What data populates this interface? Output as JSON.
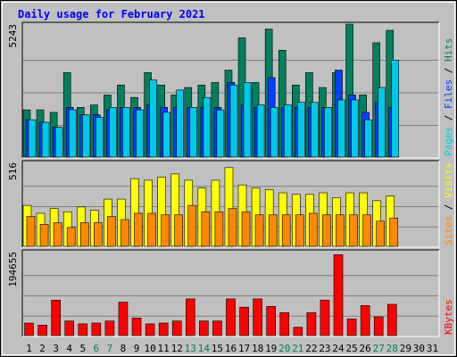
{
  "chart_data": {
    "type": "bar",
    "title": "Daily usage for February 2021",
    "x_labels": [
      "1",
      "2",
      "3",
      "4",
      "5",
      "6",
      "7",
      "8",
      "9",
      "10",
      "11",
      "12",
      "13",
      "14",
      "15",
      "16",
      "17",
      "18",
      "19",
      "20",
      "21",
      "22",
      "23",
      "24",
      "25",
      "26",
      "27",
      "28",
      "29",
      "30",
      "31"
    ],
    "weekend_days": [
      6,
      7,
      13,
      14,
      20,
      21,
      27,
      28
    ],
    "panels": [
      {
        "name": "hits-files-pages",
        "ymax_label": "5243",
        "ymax": 5243,
        "legend": [
          {
            "text": "Pages",
            "color": "#00c8e8"
          },
          {
            "text": " / ",
            "color": "#000000"
          },
          {
            "text": "Files",
            "color": "#0040ff"
          },
          {
            "text": " / ",
            "color": "#000000"
          },
          {
            "text": "Hits",
            "color": "#00805c"
          }
        ],
        "series": [
          {
            "name": "Hits",
            "color": "#00805c",
            "values": [
              1900,
              1900,
              1800,
              3400,
              2000,
              2100,
              2500,
              2900,
              2400,
              3400,
              2900,
              2500,
              2800,
              2900,
              3000,
              3500,
              4800,
              3000,
              5150,
              4300,
              2900,
              3400,
              2800,
              3400,
              5350,
              2500,
              4600,
              5100,
              0,
              0,
              0
            ]
          },
          {
            "name": "Files",
            "color": "#0040ff",
            "values": [
              1500,
              1400,
              1200,
              2000,
              1700,
              1700,
              1900,
              2000,
              2000,
              2100,
              2000,
              2000,
              2000,
              2000,
              2000,
              3000,
              2100,
              2000,
              3200,
              2000,
              2000,
              2000,
              2000,
              3500,
              2500,
              1800,
              2200,
              2000,
              0,
              0,
              0
            ]
          },
          {
            "name": "Pages",
            "color": "#00c8e8",
            "values": [
              1500,
              1400,
              1200,
              1900,
              1700,
              1600,
              2000,
              2000,
              1900,
              3100,
              1800,
              2700,
              2000,
              2400,
              1900,
              2900,
              3000,
              2100,
              2000,
              2100,
              2200,
              2200,
              2000,
              2300,
              2300,
              1500,
              2800,
              3900,
              0,
              0,
              0
            ]
          }
        ]
      },
      {
        "name": "visits-sites",
        "ymax_label": "516",
        "ymax": 516,
        "legend": [
          {
            "text": "Sites",
            "color": "#ff8800"
          },
          {
            "text": " / ",
            "color": "#000000"
          },
          {
            "text": "Visits",
            "color": "#ffff00"
          }
        ],
        "series": [
          {
            "name": "Visits",
            "color": "#ffff00",
            "values": [
              260,
              210,
              240,
              220,
              250,
              230,
              300,
              300,
              430,
              420,
              440,
              460,
              420,
              370,
              420,
              500,
              390,
              370,
              360,
              340,
              330,
              330,
              340,
              310,
              340,
              340,
              290,
              320,
              0,
              0,
              0
            ]
          },
          {
            "name": "Sites",
            "color": "#ff8800",
            "values": [
              190,
              140,
              150,
              120,
              150,
              150,
              190,
              170,
              210,
              210,
              200,
              200,
              260,
              220,
              220,
              240,
              220,
              200,
              200,
              200,
              200,
              210,
              200,
              200,
              200,
              200,
              160,
              180,
              0,
              0,
              0
            ]
          }
        ]
      },
      {
        "name": "kbytes",
        "ymax_label": "194655",
        "ymax": 194655,
        "legend": [
          {
            "text": "KBytes",
            "color": "#ff0000"
          }
        ],
        "series": [
          {
            "name": "KBytes",
            "color": "#ff0000",
            "values": [
              30000,
              25000,
              85000,
              35000,
              28000,
              30000,
              35000,
              80000,
              42000,
              28000,
              30000,
              35000,
              88000,
              35000,
              35000,
              88000,
              68000,
              88000,
              70000,
              55000,
              20000,
              55000,
              85000,
              194000,
              40000,
              72000,
              45000,
              75000,
              0,
              0,
              0
            ]
          }
        ]
      }
    ]
  }
}
